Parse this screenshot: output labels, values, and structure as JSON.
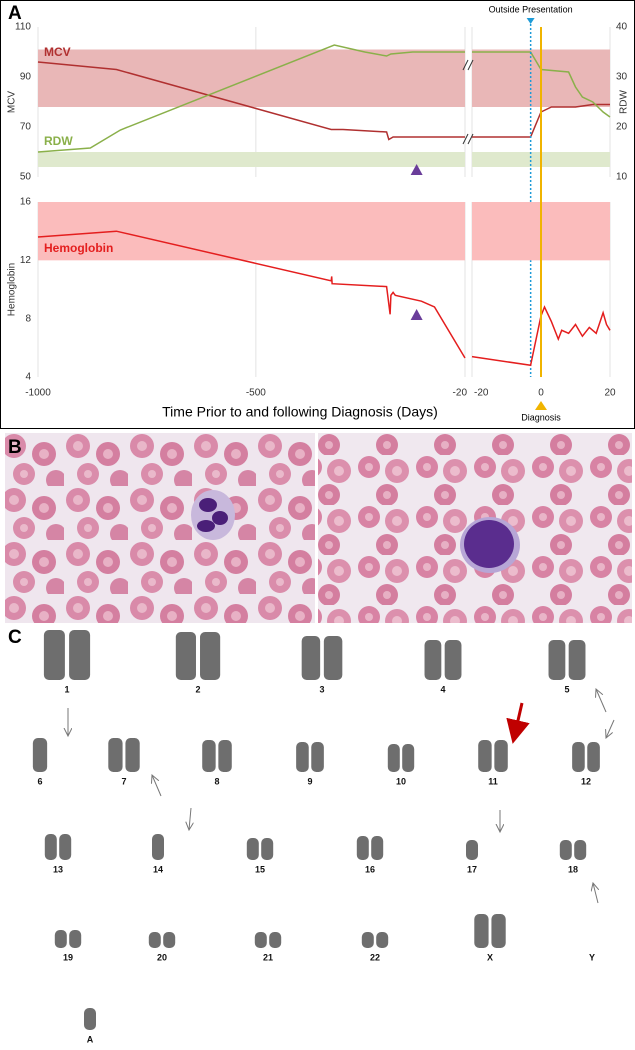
{
  "panels": {
    "a": "A",
    "b": "B",
    "c": "C"
  },
  "chart_data": [
    {
      "type": "line",
      "ylabel": "MCV",
      "y2label": "RDW",
      "ylim": [
        50,
        110
      ],
      "yticks": [
        50,
        70,
        90,
        110
      ],
      "y2lim": [
        10,
        40
      ],
      "y2ticks": [
        10,
        20,
        30,
        40
      ],
      "bands": [
        {
          "axis": "y",
          "range": [
            78,
            101
          ],
          "color": "#e9b7b7"
        },
        {
          "axis": "y2",
          "range": [
            12,
            15
          ],
          "color": "#dfe9cd"
        }
      ],
      "series": [
        {
          "name": "MCV",
          "color": "#b03030",
          "x": [
            -1000,
            -820,
            -327,
            -300,
            -200,
            -195,
            -185,
            -100,
            -20,
            null,
            -20,
            -3,
            0,
            3,
            10,
            15,
            20
          ],
          "values": [
            96,
            93,
            69,
            69,
            68,
            65,
            66,
            66,
            66,
            null,
            66,
            66,
            76,
            78,
            78,
            79,
            79
          ]
        },
        {
          "name": "RDW",
          "color": "#8ab04a",
          "axis": "y2",
          "x": [
            -1000,
            -880,
            -811,
            -320,
            -250,
            -200,
            -190,
            -140,
            -20,
            null,
            -20,
            -3,
            0,
            8,
            10,
            12,
            15,
            18,
            20
          ],
          "values": [
            15,
            15.8,
            19.4,
            36.4,
            35,
            34.2,
            34.6,
            35,
            35,
            null,
            35,
            35,
            31.5,
            31,
            28,
            26,
            25,
            23,
            22
          ]
        }
      ],
      "annotations": [
        {
          "text": "Outside Presentation",
          "x": -3,
          "color": "#1e9bd7"
        }
      ],
      "marker_x": -131
    },
    {
      "type": "line",
      "ylabel": "Hemoglobin",
      "ylim": [
        4,
        16
      ],
      "yticks": [
        4,
        8,
        12,
        16
      ],
      "bands": [
        {
          "axis": "y",
          "range": [
            12,
            16
          ],
          "color": "#fbbcbc"
        }
      ],
      "series": [
        {
          "name": "Hemoglobin",
          "color": "#e41e1e",
          "x": [
            -1000,
            -820,
            -327,
            -326,
            -325,
            -200,
            -192,
            -190,
            -185,
            -180,
            -120,
            -90,
            -20,
            null,
            -20,
            -3,
            0,
            1,
            3,
            5,
            6,
            8,
            10,
            12,
            14,
            16,
            18,
            19,
            20
          ],
          "values": [
            13.6,
            14,
            10.6,
            10.9,
            10.4,
            10.2,
            8.3,
            9.6,
            9.8,
            9.6,
            9.2,
            8.8,
            5.3,
            null,
            5.4,
            4.8,
            8.2,
            8.8,
            7.8,
            6.6,
            7.2,
            7.0,
            7.6,
            6.8,
            7.4,
            7.0,
            8.4,
            7.6,
            7.2
          ]
        }
      ],
      "annotations": [
        {
          "text": "Diagnosis",
          "x": 0,
          "color": "#f0b400"
        }
      ],
      "marker_x": -131,
      "xlabel": "Time Prior to and following Diagnosis (Days)",
      "x_segments": [
        {
          "xlim": [
            -1000,
            -20
          ],
          "xticks": [
            -1000,
            -500,
            -20
          ]
        },
        {
          "xlim": [
            -20,
            20
          ],
          "xticks": [
            -20,
            0,
            20
          ]
        }
      ],
      "grid": true
    }
  ],
  "karyotype": {
    "labels": [
      "1",
      "2",
      "3",
      "4",
      "5",
      "6",
      "7",
      "8",
      "9",
      "10",
      "11",
      "12",
      "13",
      "14",
      "15",
      "16",
      "17",
      "18",
      "19",
      "20",
      "21",
      "22",
      "X",
      "Y",
      "A"
    ]
  }
}
